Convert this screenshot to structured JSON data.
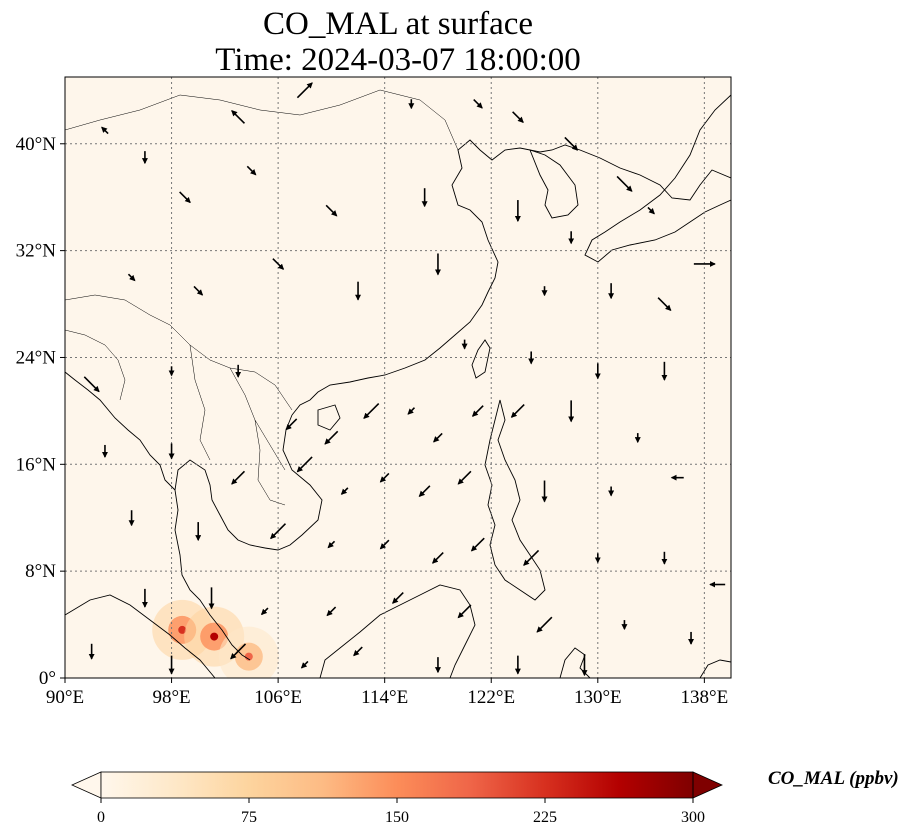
{
  "title": {
    "line1": "CO_MAL at surface",
    "line2": "Time: 2024-03-07 18:00:00"
  },
  "map": {
    "lon_range": [
      90,
      140
    ],
    "lat_range": [
      0,
      45
    ],
    "lon_ticks": [
      "90°E",
      "98°E",
      "106°E",
      "114°E",
      "122°E",
      "130°E",
      "138°E"
    ],
    "lat_ticks": [
      "0°",
      "8°N",
      "16°N",
      "24°N",
      "32°N",
      "40°N"
    ],
    "gridlines": true,
    "background_color": "#fef6eb",
    "coastline_color": "#000000",
    "wind_arrows": [
      {
        "lon": 93,
        "lat": 41,
        "dir": "NW"
      },
      {
        "lon": 96,
        "lat": 39,
        "dir": "S"
      },
      {
        "lon": 99,
        "lat": 36,
        "dir": "SE"
      },
      {
        "lon": 103,
        "lat": 42,
        "dir": "NW"
      },
      {
        "lon": 108,
        "lat": 44,
        "dir": "NE"
      },
      {
        "lon": 116,
        "lat": 43,
        "dir": "S"
      },
      {
        "lon": 121,
        "lat": 43,
        "dir": "SE"
      },
      {
        "lon": 124,
        "lat": 42,
        "dir": "SE"
      },
      {
        "lon": 128,
        "lat": 40,
        "dir": "SE"
      },
      {
        "lon": 132,
        "lat": 37,
        "dir": "SE"
      },
      {
        "lon": 134,
        "lat": 35,
        "dir": "SE"
      },
      {
        "lon": 104,
        "lat": 38,
        "dir": "SE"
      },
      {
        "lon": 110,
        "lat": 35,
        "dir": "SE"
      },
      {
        "lon": 117,
        "lat": 36,
        "dir": "S"
      },
      {
        "lon": 124,
        "lat": 35,
        "dir": "S"
      },
      {
        "lon": 126,
        "lat": 29,
        "dir": "S"
      },
      {
        "lon": 128,
        "lat": 33,
        "dir": "S"
      },
      {
        "lon": 131,
        "lat": 29,
        "dir": "S"
      },
      {
        "lon": 135,
        "lat": 28,
        "dir": "SE"
      },
      {
        "lon": 138,
        "lat": 31,
        "dir": "E"
      },
      {
        "lon": 95,
        "lat": 30,
        "dir": "SE"
      },
      {
        "lon": 100,
        "lat": 29,
        "dir": "SE"
      },
      {
        "lon": 106,
        "lat": 31,
        "dir": "SE"
      },
      {
        "lon": 112,
        "lat": 29,
        "dir": "S"
      },
      {
        "lon": 118,
        "lat": 31,
        "dir": "S"
      },
      {
        "lon": 120,
        "lat": 25,
        "dir": "S"
      },
      {
        "lon": 125,
        "lat": 24,
        "dir": "S"
      },
      {
        "lon": 130,
        "lat": 23,
        "dir": "S"
      },
      {
        "lon": 135,
        "lat": 23,
        "dir": "S"
      },
      {
        "lon": 92,
        "lat": 22,
        "dir": "SE"
      },
      {
        "lon": 98,
        "lat": 23,
        "dir": "S"
      },
      {
        "lon": 103,
        "lat": 23,
        "dir": "S"
      },
      {
        "lon": 107,
        "lat": 19,
        "dir": "SW"
      },
      {
        "lon": 110,
        "lat": 18,
        "dir": "SW"
      },
      {
        "lon": 113,
        "lat": 20,
        "dir": "SW"
      },
      {
        "lon": 116,
        "lat": 20,
        "dir": "SW"
      },
      {
        "lon": 118,
        "lat": 18,
        "dir": "SW"
      },
      {
        "lon": 121,
        "lat": 20,
        "dir": "SW"
      },
      {
        "lon": 124,
        "lat": 20,
        "dir": "SW"
      },
      {
        "lon": 128,
        "lat": 20,
        "dir": "S"
      },
      {
        "lon": 133,
        "lat": 18,
        "dir": "S"
      },
      {
        "lon": 93,
        "lat": 17,
        "dir": "S"
      },
      {
        "lon": 98,
        "lat": 17,
        "dir": "S"
      },
      {
        "lon": 103,
        "lat": 15,
        "dir": "SW"
      },
      {
        "lon": 108,
        "lat": 16,
        "dir": "SW"
      },
      {
        "lon": 111,
        "lat": 14,
        "dir": "SW"
      },
      {
        "lon": 114,
        "lat": 15,
        "dir": "SW"
      },
      {
        "lon": 117,
        "lat": 14,
        "dir": "SW"
      },
      {
        "lon": 120,
        "lat": 15,
        "dir": "SW"
      },
      {
        "lon": 126,
        "lat": 14,
        "dir": "S"
      },
      {
        "lon": 131,
        "lat": 14,
        "dir": "S"
      },
      {
        "lon": 136,
        "lat": 15,
        "dir": "W"
      },
      {
        "lon": 95,
        "lat": 12,
        "dir": "S"
      },
      {
        "lon": 100,
        "lat": 11,
        "dir": "S"
      },
      {
        "lon": 106,
        "lat": 11,
        "dir": "SW"
      },
      {
        "lon": 110,
        "lat": 10,
        "dir": "SW"
      },
      {
        "lon": 114,
        "lat": 10,
        "dir": "SW"
      },
      {
        "lon": 118,
        "lat": 9,
        "dir": "SW"
      },
      {
        "lon": 121,
        "lat": 10,
        "dir": "SW"
      },
      {
        "lon": 125,
        "lat": 9,
        "dir": "SW"
      },
      {
        "lon": 130,
        "lat": 9,
        "dir": "S"
      },
      {
        "lon": 135,
        "lat": 9,
        "dir": "S"
      },
      {
        "lon": 139,
        "lat": 7,
        "dir": "W"
      },
      {
        "lon": 96,
        "lat": 6,
        "dir": "S"
      },
      {
        "lon": 101,
        "lat": 6,
        "dir": "S"
      },
      {
        "lon": 105,
        "lat": 5,
        "dir": "SW"
      },
      {
        "lon": 110,
        "lat": 5,
        "dir": "SW"
      },
      {
        "lon": 115,
        "lat": 6,
        "dir": "SW"
      },
      {
        "lon": 120,
        "lat": 5,
        "dir": "SW"
      },
      {
        "lon": 126,
        "lat": 4,
        "dir": "SW"
      },
      {
        "lon": 132,
        "lat": 4,
        "dir": "S"
      },
      {
        "lon": 137,
        "lat": 3,
        "dir": "S"
      },
      {
        "lon": 92,
        "lat": 2,
        "dir": "S"
      },
      {
        "lon": 98,
        "lat": 1,
        "dir": "S"
      },
      {
        "lon": 103,
        "lat": 2,
        "dir": "SW"
      },
      {
        "lon": 108,
        "lat": 1,
        "dir": "SW"
      },
      {
        "lon": 112,
        "lat": 2,
        "dir": "SW"
      },
      {
        "lon": 118,
        "lat": 1,
        "dir": "S"
      },
      {
        "lon": 124,
        "lat": 1,
        "dir": "S"
      },
      {
        "lon": 129,
        "lat": 1,
        "dir": "S"
      }
    ],
    "hotspots": [
      {
        "lon": 98.8,
        "lat": 3.6,
        "value": 230
      },
      {
        "lon": 101.2,
        "lat": 3.1,
        "value": 260
      },
      {
        "lon": 103.8,
        "lat": 1.6,
        "value": 170
      }
    ]
  },
  "colorbar": {
    "label": "CO_MAL (ppbv)",
    "min": 0,
    "max": 300,
    "extend": "both",
    "colormap": "OrRd",
    "ticks": [
      "0",
      "75",
      "150",
      "225",
      "300"
    ],
    "colors": [
      "#fff7ec",
      "#fee8c8",
      "#fdd49e",
      "#fdbb84",
      "#fc8d59",
      "#ef6548",
      "#d7301f",
      "#b30000",
      "#7f0000"
    ]
  }
}
